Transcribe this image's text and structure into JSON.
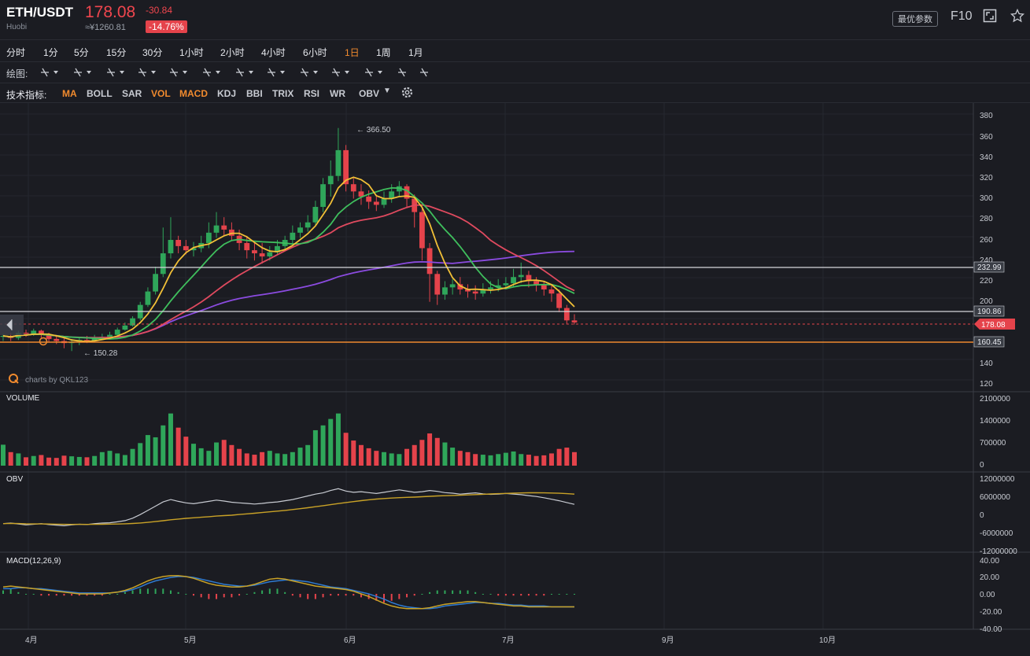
{
  "header": {
    "symbol": "ETH/USDT",
    "exchange": "Huobi",
    "price": "178.08",
    "cny_price": "≈¥1260.81",
    "change": "-30.84",
    "change_pct": "-14.76%",
    "best_params_label": "最优参数",
    "f10_label": "F10",
    "icons": [
      "fullscreen-icon",
      "star-icon"
    ]
  },
  "timeframes": [
    "分时",
    "1分",
    "5分",
    "15分",
    "30分",
    "1小时",
    "2小时",
    "4小时",
    "6小时",
    "1日",
    "1周",
    "1月"
  ],
  "active_timeframe": "1日",
  "drawing": {
    "label": "绘图:",
    "tools": [
      "line-tool-icon",
      "pen-tool-icon",
      "fib-tool-icon",
      "shape-tool-icon",
      "path-tool-icon",
      "pattern-tool-icon",
      "text-tool-icon",
      "channel-tool-icon",
      "arrow-tool-icon",
      "measure-tool-icon",
      "note-tool-icon",
      "chart-settings-icon",
      "trash-icon"
    ]
  },
  "indicators": {
    "label": "技术指标:",
    "items": [
      "MA",
      "BOLL",
      "SAR",
      "VOL",
      "MACD",
      "KDJ",
      "BBI",
      "TRIX",
      "RSI",
      "WR",
      "OBV"
    ],
    "active": [
      "MA",
      "VOL",
      "MACD"
    ],
    "settings_icon": "gear-icon"
  },
  "price_axis": [
    "380",
    "360",
    "340",
    "320",
    "300",
    "280",
    "260",
    "240",
    "220",
    "200",
    "180",
    "160",
    "140",
    "120"
  ],
  "price_tags": {
    "line_high": "232.99",
    "line_mid": "190.86",
    "current": "178.08",
    "line_low": "160.45"
  },
  "annotations": {
    "high": "366.50",
    "low": "150.28",
    "watermark": "charts by QKL123"
  },
  "volume": {
    "label": "VOLUME",
    "axis": [
      "2100000",
      "1400000",
      "700000",
      "0"
    ]
  },
  "obv": {
    "label": "OBV",
    "axis": [
      "12000000",
      "6000000",
      "0",
      "-6000000",
      "-12000000"
    ]
  },
  "macd": {
    "label": "MACD(12,26,9)",
    "axis": [
      "40.00",
      "20.00",
      "0.00",
      "-20.00",
      "-40.00"
    ]
  },
  "time_axis": [
    "4月",
    "5月",
    "6月",
    "7月",
    "9月",
    "10月"
  ],
  "colors": {
    "up": "#2fa65a",
    "down": "#e5434b",
    "ma5": "#f2c037",
    "ma10": "#3fbf5d",
    "ma20": "#e04a5f",
    "ma60": "#8b4be0",
    "accent": "#f08a2e"
  },
  "chart_data": {
    "type": "candlestick",
    "y_range": [
      120,
      390
    ],
    "candles": [
      [
        164,
        165,
        160,
        167
      ],
      [
        165,
        163,
        160,
        168
      ],
      [
        163,
        168,
        161,
        170
      ],
      [
        168,
        167,
        164,
        171
      ],
      [
        167,
        170,
        165,
        172
      ],
      [
        170,
        166,
        163,
        171
      ],
      [
        166,
        162,
        159,
        168
      ],
      [
        162,
        160,
        157,
        165
      ],
      [
        160,
        158,
        153,
        163
      ],
      [
        158,
        159,
        150.28,
        162
      ],
      [
        159,
        161,
        156,
        164
      ],
      [
        161,
        160,
        158,
        165
      ],
      [
        160,
        163,
        159,
        166
      ],
      [
        163,
        164,
        161,
        167
      ],
      [
        164,
        166,
        163,
        169
      ],
      [
        166,
        171,
        165,
        173
      ],
      [
        171,
        175,
        170,
        178
      ],
      [
        175,
        182,
        174,
        184
      ],
      [
        182,
        195,
        180,
        198
      ],
      [
        195,
        208,
        193,
        212
      ],
      [
        208,
        225,
        205,
        232
      ],
      [
        225,
        245,
        222,
        270
      ],
      [
        245,
        258,
        240,
        280
      ],
      [
        258,
        252,
        245,
        262
      ],
      [
        252,
        248,
        244,
        258
      ],
      [
        248,
        250,
        242,
        256
      ],
      [
        250,
        255,
        246,
        262
      ],
      [
        255,
        265,
        250,
        275
      ],
      [
        265,
        272,
        260,
        285
      ],
      [
        272,
        268,
        262,
        280
      ],
      [
        268,
        262,
        258,
        275
      ],
      [
        262,
        255,
        248,
        268
      ],
      [
        255,
        248,
        240,
        262
      ],
      [
        248,
        245,
        238,
        256
      ],
      [
        245,
        242,
        235,
        255
      ],
      [
        242,
        246,
        238,
        252
      ],
      [
        246,
        252,
        244,
        258
      ],
      [
        252,
        258,
        248,
        262
      ],
      [
        258,
        265,
        254,
        272
      ],
      [
        265,
        270,
        260,
        275
      ],
      [
        270,
        275,
        266,
        282
      ],
      [
        275,
        290,
        272,
        296
      ],
      [
        290,
        312,
        285,
        318
      ],
      [
        312,
        320,
        300,
        335
      ],
      [
        320,
        345,
        315,
        366.5
      ],
      [
        345,
        312,
        305,
        350
      ],
      [
        312,
        305,
        298,
        318
      ],
      [
        305,
        300,
        292,
        312
      ],
      [
        300,
        295,
        288,
        306
      ],
      [
        295,
        292,
        286,
        300
      ],
      [
        292,
        298,
        289,
        305
      ],
      [
        298,
        305,
        294,
        312
      ],
      [
        305,
        310,
        300,
        315
      ],
      [
        310,
        298,
        290,
        312
      ],
      [
        298,
        285,
        270,
        302
      ],
      [
        285,
        250,
        238,
        290
      ],
      [
        250,
        225,
        198,
        255
      ],
      [
        225,
        205,
        195,
        228
      ],
      [
        205,
        212,
        200,
        218
      ],
      [
        212,
        215,
        205,
        220
      ],
      [
        215,
        210,
        205,
        222
      ],
      [
        210,
        208,
        202,
        215
      ],
      [
        208,
        206,
        200,
        214
      ],
      [
        206,
        210,
        203,
        216
      ],
      [
        210,
        212,
        206,
        218
      ],
      [
        212,
        214,
        208,
        220
      ],
      [
        214,
        216,
        210,
        222
      ],
      [
        216,
        222,
        212,
        230
      ],
      [
        222,
        224,
        216,
        236
      ],
      [
        224,
        218,
        212,
        228
      ],
      [
        218,
        215,
        208,
        222
      ],
      [
        215,
        210,
        204,
        218
      ],
      [
        210,
        206,
        198,
        214
      ],
      [
        206,
        192,
        188,
        210
      ],
      [
        192,
        180,
        176,
        195
      ],
      [
        180,
        178,
        176,
        186
      ]
    ],
    "volume": [
      650,
      420,
      380,
      260,
      300,
      330,
      250,
      240,
      310,
      290,
      270,
      260,
      300,
      420,
      460,
      380,
      330,
      520,
      700,
      950,
      880,
      1250,
      1620,
      1180,
      900,
      680,
      540,
      460,
      720,
      800,
      640,
      520,
      380,
      340,
      420,
      460,
      380,
      360,
      420,
      560,
      640,
      1100,
      1250,
      1450,
      1620,
      1020,
      780,
      640,
      540,
      460,
      420,
      380,
      360,
      520,
      640,
      800,
      1000,
      860,
      720,
      560,
      460,
      420,
      360,
      340,
      320,
      360,
      400,
      440,
      360,
      340,
      300,
      320,
      380,
      520,
      560,
      420
    ],
    "obv": [
      -2.8,
      -2.6,
      -2.9,
      -3.2,
      -3.0,
      -2.8,
      -3.1,
      -3.3,
      -3.5,
      -3.2,
      -3.0,
      -3.1,
      -2.8,
      -2.6,
      -2.5,
      -2.2,
      -1.8,
      -1.0,
      0.2,
      1.6,
      3.0,
      4.4,
      5.2,
      4.6,
      4.1,
      3.8,
      4.2,
      4.6,
      5.0,
      4.7,
      4.3,
      4.1,
      3.9,
      3.7,
      3.9,
      4.2,
      4.4,
      4.8,
      5.2,
      5.8,
      6.4,
      7.0,
      7.4,
      8.2,
      8.8,
      8.0,
      7.6,
      7.8,
      7.5,
      7.2,
      7.6,
      8.0,
      8.4,
      8.0,
      7.6,
      7.8,
      8.2,
      7.9,
      7.5,
      7.3,
      7.0,
      7.2,
      7.4,
      7.1,
      6.9,
      7.0,
      7.2,
      7.0,
      6.8,
      6.5,
      6.2,
      5.8,
      5.3,
      4.8,
      4.2,
      3.6
    ],
    "macd_dif": [
      8,
      9,
      8,
      7,
      6,
      5,
      4,
      3,
      2,
      1,
      0,
      0,
      0,
      0,
      1,
      2,
      4,
      7,
      11,
      15,
      18,
      20,
      21,
      21,
      20,
      18,
      15,
      12,
      10,
      9,
      8,
      8,
      9,
      11,
      14,
      17,
      18,
      17,
      15,
      13,
      11,
      9,
      8,
      7,
      6,
      5,
      3,
      0,
      -3,
      -7,
      -11,
      -14,
      -16,
      -17,
      -17,
      -17,
      -16,
      -14,
      -12,
      -11,
      -10,
      -9,
      -9,
      -10,
      -11,
      -12,
      -13,
      -14,
      -14,
      -15,
      -15,
      -15,
      -15,
      -15,
      -15,
      -15
    ],
    "macd_dea": [
      6,
      6,
      7,
      7,
      6,
      6,
      5,
      4,
      3,
      2,
      1,
      1,
      1,
      1,
      1,
      2,
      3,
      5,
      8,
      12,
      15,
      17,
      19,
      20,
      20,
      19,
      17,
      15,
      13,
      11,
      10,
      9,
      9,
      10,
      12,
      14,
      15,
      16,
      16,
      15,
      14,
      12,
      10,
      8,
      7,
      6,
      4,
      2,
      0,
      -3,
      -6,
      -10,
      -13,
      -15,
      -16,
      -17,
      -17,
      -16,
      -14,
      -13,
      -12,
      -11,
      -10,
      -10,
      -11,
      -11,
      -12,
      -13,
      -13,
      -14,
      -14,
      -14,
      -15,
      -15,
      -15,
      -15
    ]
  }
}
